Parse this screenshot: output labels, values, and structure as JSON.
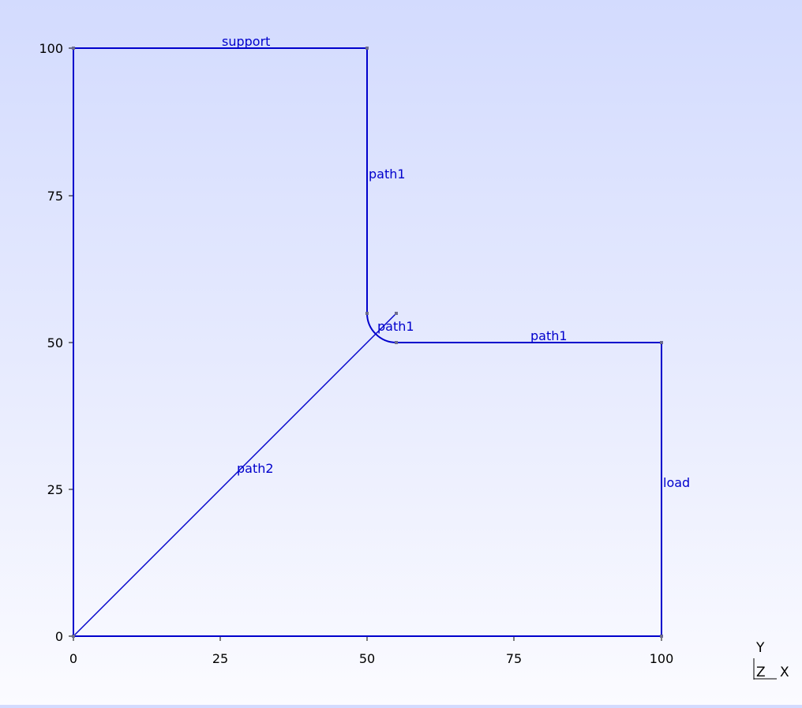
{
  "axes": {
    "x_ticks": [
      "0",
      "25",
      "50",
      "75",
      "100"
    ],
    "y_ticks": [
      "0",
      "25",
      "50",
      "75",
      "100"
    ]
  },
  "geometry": {
    "vertices": [
      {
        "id": "v0",
        "x": 0,
        "y": 0
      },
      {
        "id": "v1",
        "x": 100,
        "y": 0
      },
      {
        "id": "v2",
        "x": 100,
        "y": 50
      },
      {
        "id": "v3",
        "x": 55,
        "y": 50
      },
      {
        "id": "v4",
        "x": 50,
        "y": 55
      },
      {
        "id": "v5",
        "x": 50,
        "y": 100
      },
      {
        "id": "v6",
        "x": 0,
        "y": 100
      },
      {
        "id": "v7",
        "x": 55,
        "y": 55
      }
    ],
    "edges": [
      {
        "label": "support"
      },
      {
        "label": "path1"
      },
      {
        "label": "path1"
      },
      {
        "label": "path1"
      },
      {
        "label": "load"
      },
      {
        "label": "path2"
      }
    ]
  },
  "triad": {
    "y_label": "Y",
    "z_label": "Z",
    "x_label": "X"
  },
  "colors": {
    "edge": "#0000cc",
    "vertex": "#6c6c8c",
    "axis": "#000000"
  }
}
